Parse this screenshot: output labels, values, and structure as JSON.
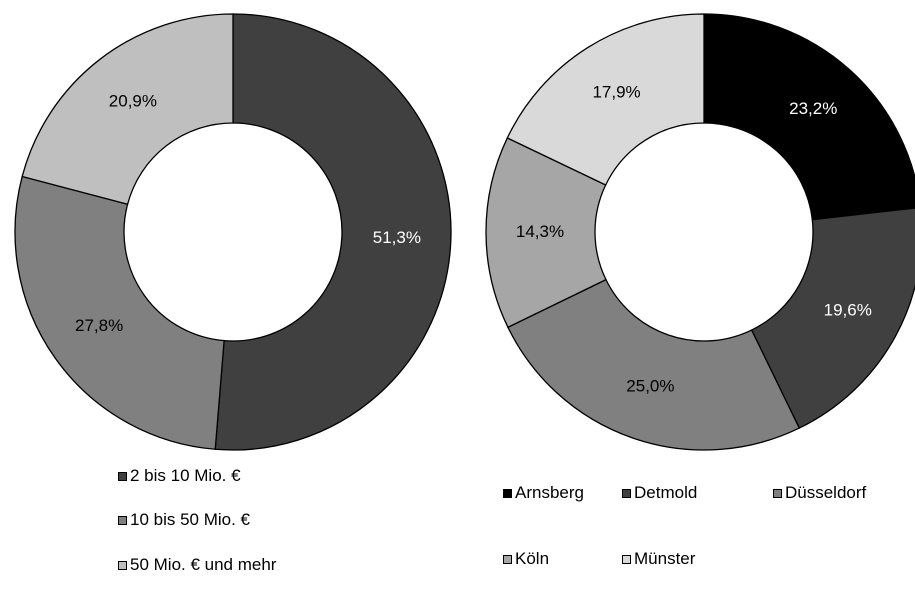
{
  "chart_data": [
    {
      "type": "pie",
      "donut": true,
      "categories": [
        "2 bis 10 Mio. €",
        "10 bis 50 Mio. €",
        "50 Mio. € und mehr"
      ],
      "values": [
        51.3,
        27.8,
        20.9
      ],
      "labels": [
        "51,3%",
        "27,8%",
        "20,9%"
      ],
      "colors": [
        "#404040",
        "#808080",
        "#bfbfbf"
      ],
      "label_colors": [
        "#ffffff",
        "#000000",
        "#000000"
      ],
      "legend_position": "bottom"
    },
    {
      "type": "pie",
      "donut": true,
      "categories": [
        "Arnsberg",
        "Detmold",
        "Düsseldorf",
        "Köln",
        "Münster"
      ],
      "values": [
        23.2,
        19.6,
        25.0,
        14.3,
        17.9
      ],
      "labels": [
        "23,2%",
        "19,6%",
        "25,0%",
        "14,3%",
        "17,9%"
      ],
      "colors": [
        "#000000",
        "#404040",
        "#808080",
        "#a6a6a6",
        "#d9d9d9"
      ],
      "label_colors": [
        "#ffffff",
        "#ffffff",
        "#000000",
        "#000000",
        "#000000"
      ],
      "legend_position": "bottom"
    }
  ]
}
